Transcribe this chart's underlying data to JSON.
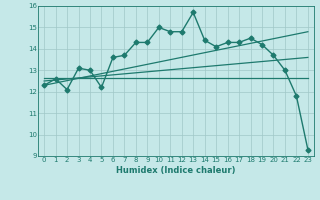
{
  "xlabel": "Humidex (Indice chaleur)",
  "xlim": [
    -0.5,
    23.5
  ],
  "ylim": [
    9,
    16
  ],
  "xticks": [
    0,
    1,
    2,
    3,
    4,
    5,
    6,
    7,
    8,
    9,
    10,
    11,
    12,
    13,
    14,
    15,
    16,
    17,
    18,
    19,
    20,
    21,
    22,
    23
  ],
  "yticks": [
    9,
    10,
    11,
    12,
    13,
    14,
    15,
    16
  ],
  "bg_color": "#c5e8e8",
  "grid_color": "#a0c8c8",
  "line_color": "#1e7a6e",
  "series": [
    {
      "x": [
        0,
        1,
        2,
        3,
        4,
        5,
        6,
        7,
        8,
        9,
        10,
        11,
        12,
        13,
        14,
        15,
        16,
        17,
        18,
        19,
        20,
        21,
        22,
        23
      ],
      "y": [
        12.3,
        12.6,
        12.1,
        13.1,
        13.0,
        12.2,
        13.6,
        13.7,
        14.3,
        14.3,
        15.0,
        14.8,
        14.8,
        15.7,
        14.4,
        14.1,
        14.3,
        14.3,
        14.5,
        14.2,
        13.7,
        13.0,
        11.8,
        9.3
      ],
      "marker": "D",
      "markersize": 2.5,
      "linewidth": 1.0
    },
    {
      "x": [
        0,
        23
      ],
      "y": [
        12.3,
        14.8
      ],
      "marker": null,
      "linewidth": 0.9
    },
    {
      "x": [
        0,
        23
      ],
      "y": [
        12.65,
        12.65
      ],
      "marker": null,
      "linewidth": 0.9
    },
    {
      "x": [
        0,
        23
      ],
      "y": [
        12.5,
        13.6
      ],
      "marker": null,
      "linewidth": 0.9
    }
  ]
}
